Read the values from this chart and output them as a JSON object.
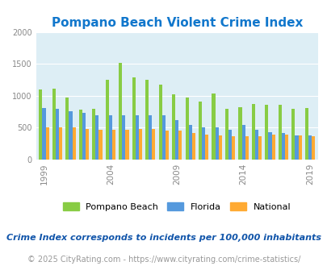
{
  "title": "Pompano Beach Violent Crime Index",
  "title_color": "#1177cc",
  "subtitle": "Crime Index corresponds to incidents per 100,000 inhabitants",
  "footer": "© 2025 CityRating.com - https://www.cityrating.com/crime-statistics/",
  "years": [
    1999,
    2000,
    2001,
    2002,
    2003,
    2004,
    2005,
    2006,
    2007,
    2008,
    2009,
    2010,
    2011,
    2012,
    2013,
    2014,
    2015,
    2016,
    2017,
    2018,
    2019
  ],
  "pompano_beach": [
    1100,
    1110,
    970,
    780,
    800,
    1250,
    1520,
    1290,
    1250,
    1180,
    1020,
    970,
    910,
    1040,
    790,
    825,
    870,
    855,
    860,
    790,
    805
  ],
  "florida": [
    810,
    800,
    760,
    730,
    700,
    700,
    700,
    700,
    700,
    690,
    620,
    540,
    510,
    500,
    470,
    540,
    470,
    430,
    415,
    380,
    375
  ],
  "national": [
    505,
    505,
    500,
    480,
    470,
    470,
    470,
    475,
    475,
    460,
    450,
    420,
    390,
    380,
    370,
    365,
    370,
    395,
    395,
    375,
    365
  ],
  "bar_colors": [
    "#88cc44",
    "#5599dd",
    "#ffaa33"
  ],
  "bg_color": "#ddeef5",
  "ylim": [
    0,
    2000
  ],
  "yticks": [
    0,
    500,
    1000,
    1500,
    2000
  ],
  "xtick_years": [
    1999,
    2004,
    2009,
    2014,
    2019
  ],
  "legend_labels": [
    "Pompano Beach",
    "Florida",
    "National"
  ],
  "legend_fontsize": 8,
  "subtitle_fontsize": 8,
  "footer_fontsize": 7,
  "title_fontsize": 11,
  "tick_color": "#888888",
  "grid_color": "#ffffff",
  "bar_width": 0.25
}
